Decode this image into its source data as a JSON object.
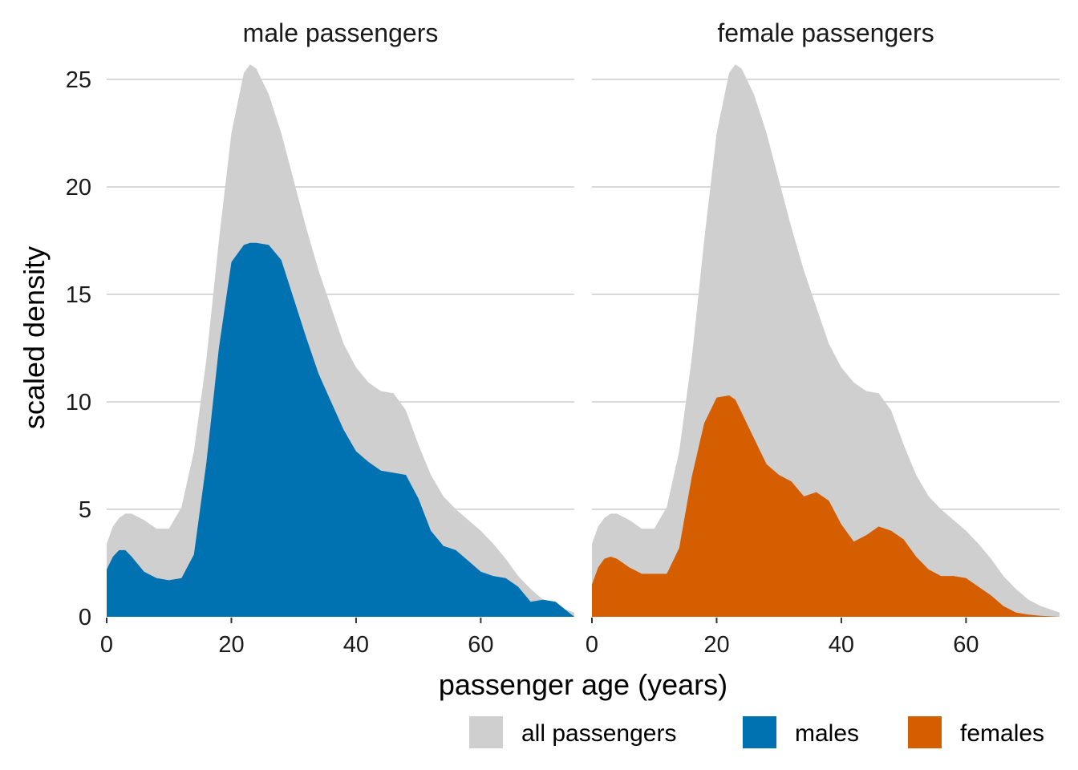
{
  "chart_data": {
    "type": "area",
    "xlabel": "passenger age (years)",
    "ylabel": "scaled density",
    "xlim": [
      0,
      75
    ],
    "ylim": [
      0,
      26.5
    ],
    "x_ticks": [
      0,
      20,
      40,
      60
    ],
    "y_ticks": [
      0,
      5,
      10,
      15,
      20,
      25
    ],
    "grid": "horizontal",
    "legend": {
      "position": "bottom-right",
      "items": [
        {
          "label": "all passengers",
          "color": "#cfcfcf"
        },
        {
          "label": "males",
          "color": "#0072b2"
        },
        {
          "label": "females",
          "color": "#d55e00"
        }
      ]
    },
    "x": [
      0,
      1,
      2,
      3,
      4,
      6,
      8,
      10,
      12,
      14,
      16,
      18,
      20,
      22,
      23,
      24,
      26,
      28,
      30,
      32,
      34,
      36,
      38,
      40,
      42,
      44,
      46,
      48,
      50,
      52,
      54,
      56,
      58,
      60,
      62,
      64,
      66,
      68,
      70,
      72,
      75
    ],
    "all_passengers": [
      3.4,
      4.2,
      4.6,
      4.8,
      4.8,
      4.5,
      4.1,
      4.1,
      5.1,
      7.7,
      12.0,
      17.5,
      22.5,
      25.3,
      25.7,
      25.5,
      24.3,
      22.5,
      20.3,
      18.1,
      16.1,
      14.4,
      12.7,
      11.6,
      10.9,
      10.5,
      10.4,
      9.6,
      8.0,
      6.6,
      5.6,
      5.0,
      4.5,
      4.0,
      3.4,
      2.7,
      1.9,
      1.3,
      0.8,
      0.5,
      0.2
    ],
    "facets": [
      {
        "title": "male passengers",
        "series": {
          "name": "males",
          "color": "#0072b2",
          "values": [
            2.2,
            2.8,
            3.1,
            3.1,
            2.8,
            2.1,
            1.8,
            1.7,
            1.8,
            2.9,
            7.2,
            12.5,
            16.5,
            17.3,
            17.4,
            17.4,
            17.3,
            16.6,
            14.8,
            13.0,
            11.3,
            10.0,
            8.7,
            7.7,
            7.2,
            6.8,
            6.7,
            6.6,
            5.5,
            4.0,
            3.3,
            3.1,
            2.6,
            2.1,
            1.9,
            1.8,
            1.4,
            0.7,
            0.8,
            0.7,
            0.0
          ]
        }
      },
      {
        "title": "female passengers",
        "series": {
          "name": "females",
          "color": "#d55e00",
          "values": [
            1.5,
            2.3,
            2.7,
            2.8,
            2.7,
            2.3,
            2.0,
            2.0,
            2.0,
            3.2,
            6.5,
            9.0,
            10.2,
            10.3,
            10.1,
            9.5,
            8.3,
            7.1,
            6.6,
            6.3,
            5.6,
            5.8,
            5.4,
            4.3,
            3.5,
            3.8,
            4.2,
            4.0,
            3.6,
            2.8,
            2.2,
            1.9,
            1.9,
            1.8,
            1.4,
            1.0,
            0.5,
            0.2,
            0.1,
            0.05,
            0.0
          ]
        }
      }
    ]
  }
}
